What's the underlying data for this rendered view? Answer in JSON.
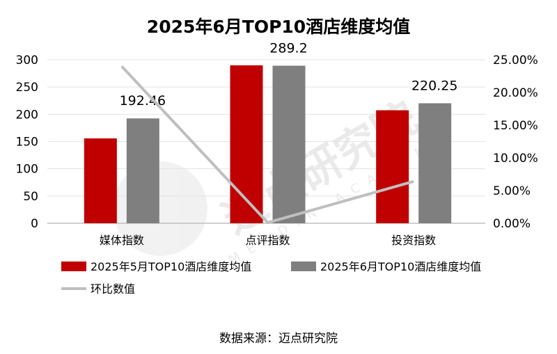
{
  "chart_data": {
    "type": "bar",
    "title": "2025年6月TOP10酒店维度均值",
    "categories": [
      "媒体指数",
      "点评指数",
      "投资指数"
    ],
    "series": [
      {
        "name": "2025年5月TOP10酒店维度均值",
        "values": [
          155.8,
          289.9,
          207.4
        ],
        "color": "#c00000",
        "axis": "left"
      },
      {
        "name": "2025年6月TOP10酒店维度均值",
        "values": [
          192.46,
          289.2,
          220.25
        ],
        "color": "#7f7f7f",
        "axis": "left",
        "labels": [
          "192.46",
          "289.2",
          "220.25"
        ]
      },
      {
        "name": "环比数值",
        "type": "line",
        "values": [
          0.24,
          0.001,
          0.064
        ],
        "color": "#bfbfbf",
        "axis": "right"
      }
    ],
    "ylim": [
      0,
      300
    ],
    "yticks": [
      "0",
      "50",
      "100",
      "150",
      "200",
      "250",
      "300"
    ],
    "y2lim": [
      0,
      0.25
    ],
    "y2ticks": [
      "0.00%",
      "5.00%",
      "10.00%",
      "15.00%",
      "20.00%",
      "25.00%"
    ],
    "grid": true,
    "legend": "bottom"
  },
  "source": "数据来源：迈点研究院",
  "watermark": "迈点研究院 MEADIN ACADEMY"
}
